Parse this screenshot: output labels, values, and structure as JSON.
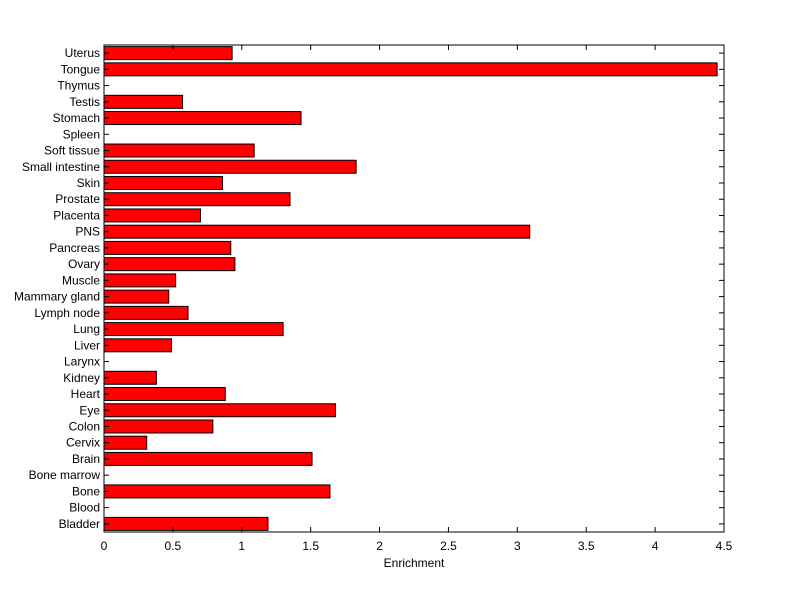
{
  "chart_data": {
    "type": "bar",
    "orientation": "horizontal",
    "categories": [
      "Bladder",
      "Blood",
      "Bone",
      "Bone marrow",
      "Brain",
      "Cervix",
      "Colon",
      "Eye",
      "Heart",
      "Kidney",
      "Larynx",
      "Liver",
      "Lung",
      "Lymph node",
      "Mammary gland",
      "Muscle",
      "Ovary",
      "Pancreas",
      "PNS",
      "Placenta",
      "Prostate",
      "Skin",
      "Small intestine",
      "Soft tissue",
      "Spleen",
      "Stomach",
      "Testis",
      "Thymus",
      "Tongue",
      "Uterus"
    ],
    "values": [
      1.19,
      0,
      1.64,
      0,
      1.51,
      0.31,
      0.79,
      1.68,
      0.88,
      0.38,
      0,
      0.49,
      1.3,
      0.61,
      0.47,
      0.52,
      0.95,
      0.92,
      3.09,
      0.7,
      1.35,
      0.86,
      1.83,
      1.09,
      0,
      1.43,
      0.57,
      0,
      4.45,
      0.93
    ],
    "xlabel": "Enrichment",
    "ylabel": "",
    "title": "",
    "xlim": [
      0,
      4.5
    ],
    "xticks": [
      0,
      0.5,
      1,
      1.5,
      2,
      2.5,
      3,
      3.5,
      4,
      4.5
    ],
    "xtick_labels": [
      "0",
      "0.5",
      "1",
      "1.5",
      "2",
      "2.5",
      "3",
      "3.5",
      "4",
      "4.5"
    ],
    "grid": false,
    "legend": "none",
    "bar_color": "#ff0000",
    "edge_color": "#000000"
  }
}
